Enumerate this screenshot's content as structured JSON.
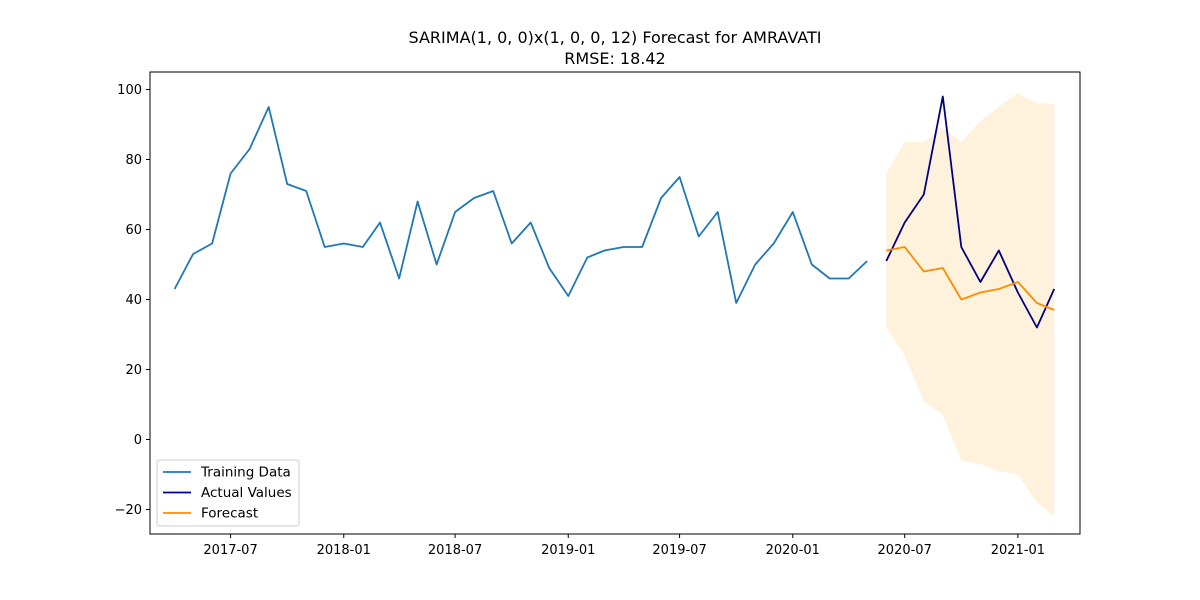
{
  "chart_data": {
    "type": "line",
    "title": "SARIMA(1, 0, 0)x(1, 0, 0, 12) Forecast for AMRAVATI",
    "subtitle": "RMSE: 18.42",
    "xlabel": "",
    "ylabel": "",
    "x_ticks": [
      "2017-07",
      "2018-01",
      "2018-07",
      "2019-01",
      "2019-07",
      "2020-01",
      "2020-07",
      "2021-01"
    ],
    "y_ticks": [
      "−20",
      "0",
      "20",
      "40",
      "60",
      "80",
      "100"
    ],
    "xlim": [
      "2017-02-20",
      "2021-04-12"
    ],
    "ylim": [
      -27,
      105
    ],
    "grid": false,
    "legend_position": "lower-left",
    "series": [
      {
        "name": "Training Data",
        "color": "#1f77b4",
        "x": [
          "2017-04",
          "2017-05",
          "2017-06",
          "2017-07",
          "2017-08",
          "2017-09",
          "2017-10",
          "2017-11",
          "2017-12",
          "2018-01",
          "2018-02",
          "2018-03",
          "2018-04",
          "2018-05",
          "2018-06",
          "2018-07",
          "2018-08",
          "2018-09",
          "2018-10",
          "2018-11",
          "2018-12",
          "2019-01",
          "2019-02",
          "2019-03",
          "2019-04",
          "2019-05",
          "2019-06",
          "2019-07",
          "2019-08",
          "2019-09",
          "2019-10",
          "2019-11",
          "2019-12",
          "2020-01",
          "2020-02",
          "2020-03",
          "2020-04",
          "2020-05"
        ],
        "values": [
          43,
          53,
          56,
          76,
          83,
          95,
          73,
          71,
          55,
          56,
          55,
          62,
          46,
          68,
          50,
          65,
          69,
          71,
          56,
          62,
          49,
          41,
          52,
          54,
          55,
          55,
          69,
          75,
          58,
          65,
          39,
          50,
          56,
          65,
          50,
          46,
          46,
          51
        ]
      },
      {
        "name": "Actual Values",
        "color": "#000080",
        "x": [
          "2020-06",
          "2020-07",
          "2020-08",
          "2020-09",
          "2020-10",
          "2020-11",
          "2020-12",
          "2021-01",
          "2021-02",
          "2021-03"
        ],
        "values": [
          51,
          62,
          70,
          98,
          55,
          45,
          54,
          42,
          32,
          43
        ]
      },
      {
        "name": "Forecast",
        "color": "#ff8c00",
        "x": [
          "2020-06",
          "2020-07",
          "2020-08",
          "2020-09",
          "2020-10",
          "2020-11",
          "2020-12",
          "2021-01",
          "2021-02",
          "2021-03"
        ],
        "values": [
          54,
          55,
          48,
          49,
          40,
          42,
          43,
          45,
          39,
          37
        ]
      }
    ],
    "confidence_band": {
      "color": "#fdeccf",
      "x": [
        "2020-06",
        "2020-07",
        "2020-08",
        "2020-09",
        "2020-10",
        "2020-11",
        "2020-12",
        "2021-01",
        "2021-02",
        "2021-03"
      ],
      "lower": [
        32,
        24,
        11,
        7,
        -6,
        -7,
        -9,
        -10,
        -18,
        -22
      ],
      "upper": [
        76,
        85,
        85,
        89,
        85,
        91,
        95,
        99,
        96,
        96
      ]
    }
  }
}
